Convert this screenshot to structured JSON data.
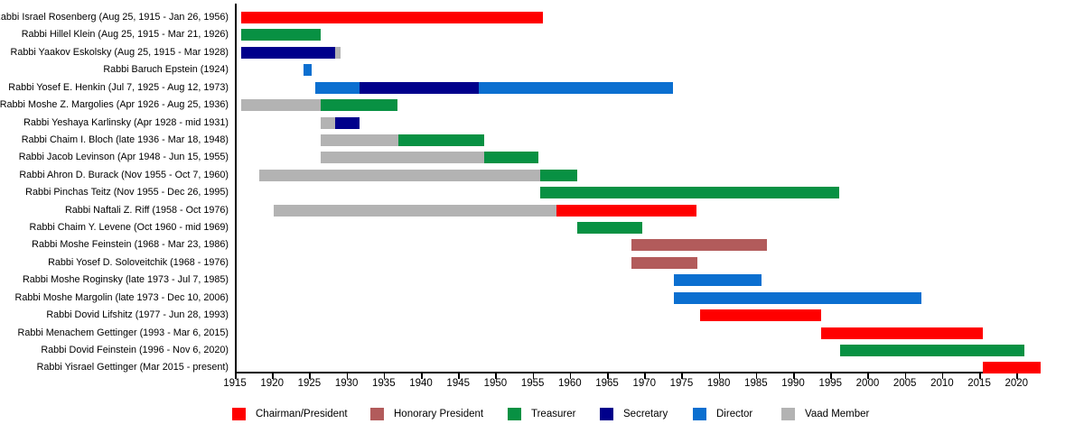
{
  "chart_data": {
    "type": "bar",
    "subtype": "gantt-timeline",
    "title": "",
    "xlabel": "",
    "ylabel": "",
    "grid": false,
    "legend_position": "bottom",
    "x_axis": {
      "min": 1915,
      "max": 2023,
      "tick_interval": 5,
      "ticks": [
        1915,
        1920,
        1925,
        1930,
        1935,
        1940,
        1945,
        1950,
        1955,
        1960,
        1965,
        1970,
        1975,
        1980,
        1985,
        1990,
        1995,
        2000,
        2005,
        2010,
        2015,
        2020
      ]
    },
    "roles": [
      {
        "id": "chairman",
        "label": "Chairman/President",
        "color": "#ff0000"
      },
      {
        "id": "honorary",
        "label": "Honorary President",
        "color": "#b25b5b"
      },
      {
        "id": "treasurer",
        "label": "Treasurer",
        "color": "#089143"
      },
      {
        "id": "secretary",
        "label": "Secretary",
        "color": "#00008b"
      },
      {
        "id": "director",
        "label": "Director",
        "color": "#0b6fd0"
      },
      {
        "id": "vaad",
        "label": "Vaad Member",
        "color": "#b3b3b3"
      }
    ],
    "rows": [
      {
        "label": "Rabbi Israel Rosenberg (Aug 25, 1915 - Jan 26, 1956)",
        "segments": [
          {
            "role": "chairman",
            "start": 1915.65,
            "end": 1956.1
          }
        ]
      },
      {
        "label": "Rabbi Hillel Klein (Aug 25, 1915 - Mar 21, 1926)",
        "segments": [
          {
            "role": "treasurer",
            "start": 1915.65,
            "end": 1926.25
          }
        ]
      },
      {
        "label": "Rabbi Yaakov Eskolsky (Aug 25, 1915 - Mar 1928)",
        "segments": [
          {
            "role": "secretary",
            "start": 1915.65,
            "end": 1928.2
          },
          {
            "role": "vaad",
            "start": 1928.2,
            "end": 1928.9
          }
        ]
      },
      {
        "label": "Rabbi Baruch Epstein (1924)",
        "segments": [
          {
            "role": "director",
            "start": 1924.0,
            "end": 1925.1
          }
        ]
      },
      {
        "label": "Rabbi Yosef E. Henkin (Jul 7, 1925 - Aug 12, 1973)",
        "segments": [
          {
            "role": "director",
            "start": 1925.5,
            "end": 1931.5
          },
          {
            "role": "secretary",
            "start": 1931.5,
            "end": 1947.5
          },
          {
            "role": "director",
            "start": 1947.5,
            "end": 1973.6
          }
        ]
      },
      {
        "label": "Rabbi Moshe Z. Margolies (Apr 1926 - Aug 25, 1936)",
        "segments": [
          {
            "role": "vaad",
            "start": 1915.65,
            "end": 1926.25
          },
          {
            "role": "treasurer",
            "start": 1926.25,
            "end": 1936.65
          }
        ]
      },
      {
        "label": "Rabbi Yeshaya Karlinsky (Apr 1928 - mid 1931)",
        "segments": [
          {
            "role": "vaad",
            "start": 1926.25,
            "end": 1928.25
          },
          {
            "role": "secretary",
            "start": 1928.25,
            "end": 1931.5
          }
        ]
      },
      {
        "label": "Rabbi Chaim I. Bloch (late 1936 - Mar 18, 1948)",
        "segments": [
          {
            "role": "vaad",
            "start": 1926.25,
            "end": 1936.7
          },
          {
            "role": "treasurer",
            "start": 1936.7,
            "end": 1948.2
          }
        ]
      },
      {
        "label": "Rabbi Jacob Levinson (Apr 1948 - Jun 15, 1955)",
        "segments": [
          {
            "role": "vaad",
            "start": 1926.25,
            "end": 1948.2
          },
          {
            "role": "treasurer",
            "start": 1948.2,
            "end": 1955.5
          }
        ]
      },
      {
        "label": "Rabbi Ahron D. Burack (Nov 1955 - Oct 7, 1960)",
        "segments": [
          {
            "role": "vaad",
            "start": 1918.0,
            "end": 1955.8
          },
          {
            "role": "treasurer",
            "start": 1955.8,
            "end": 1960.8
          }
        ]
      },
      {
        "label": "Rabbi Pinchas Teitz (Nov 1955 - Dec 26, 1995)",
        "segments": [
          {
            "role": "treasurer",
            "start": 1955.8,
            "end": 1996.0
          }
        ]
      },
      {
        "label": "Rabbi Naftali Z. Riff (1958 - Oct 1976)",
        "segments": [
          {
            "role": "vaad",
            "start": 1920.0,
            "end": 1958.0
          },
          {
            "role": "chairman",
            "start": 1958.0,
            "end": 1976.8
          }
        ]
      },
      {
        "label": "Rabbi Chaim Y. Levene (Oct 1960 - mid 1969)",
        "segments": [
          {
            "role": "treasurer",
            "start": 1960.8,
            "end": 1969.5
          }
        ]
      },
      {
        "label": "Rabbi Moshe Feinstein (1968 - Mar 23, 1986)",
        "segments": [
          {
            "role": "honorary",
            "start": 1968.0,
            "end": 1986.25
          }
        ]
      },
      {
        "label": "Rabbi Yosef D. Soloveitchik (1968 - 1976)",
        "segments": [
          {
            "role": "honorary",
            "start": 1968.0,
            "end": 1976.9
          }
        ]
      },
      {
        "label": "Rabbi Moshe Roginsky (late 1973 - Jul 7, 1985)",
        "segments": [
          {
            "role": "director",
            "start": 1973.7,
            "end": 1985.5
          }
        ]
      },
      {
        "label": "Rabbi Moshe Margolin (late 1973 - Dec 10, 2006)",
        "segments": [
          {
            "role": "director",
            "start": 1973.7,
            "end": 2006.95
          }
        ]
      },
      {
        "label": "Rabbi Dovid Lifshitz (1977 - Jun 28, 1993)",
        "segments": [
          {
            "role": "chairman",
            "start": 1977.2,
            "end": 1993.5
          }
        ]
      },
      {
        "label": "Rabbi Menachem Gettinger (1993 - Mar 6, 2015)",
        "segments": [
          {
            "role": "chairman",
            "start": 1993.5,
            "end": 2015.2
          }
        ]
      },
      {
        "label": "Rabbi Dovid Feinstein (1996 - Nov 6, 2020)",
        "segments": [
          {
            "role": "treasurer",
            "start": 1996.0,
            "end": 2020.85
          }
        ]
      },
      {
        "label": "Rabbi Yisrael Gettinger (Mar 2015 - present)",
        "segments": [
          {
            "role": "chairman",
            "start": 2015.2,
            "end": 2023.0
          }
        ]
      }
    ]
  }
}
